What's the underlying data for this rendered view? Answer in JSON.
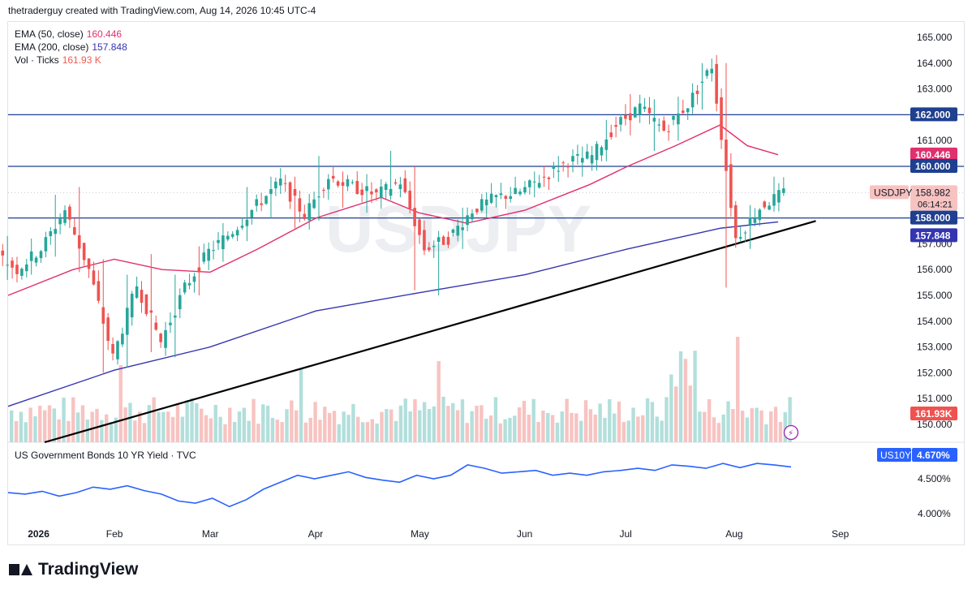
{
  "header": {
    "text": "thetraderguy created with TradingView.com, Aug 14, 2026 10:45 UTC-4"
  },
  "brand": {
    "name": "TradingView"
  },
  "watermark": "USDJPY",
  "legend": {
    "ema50": {
      "label": "EMA (50, close)",
      "value": "160.446",
      "color": "#e0306e"
    },
    "ema200": {
      "label": "EMA (200, close)",
      "value": "157.848",
      "color": "#3535b0"
    },
    "vol": {
      "label": "Vol · Ticks",
      "value": "161.93 K",
      "color": "#f25850"
    }
  },
  "lower_pane": {
    "label": "US Government Bonds 10 YR Yield · TVC"
  },
  "price_tags": {
    "symbol": "USDJPY",
    "last": "158.982",
    "countdown": "06:14:21",
    "ema50": "160.446",
    "ema200": "157.848",
    "level_162": "162.000",
    "level_160": "160.000",
    "level_158": "158.000",
    "volume": "161.93K",
    "us10y_symbol": "US10Y",
    "us10y_value": "4.670%"
  },
  "colors": {
    "up": "#26a69a",
    "down": "#ef5350",
    "vol_up": "#b2dfdb",
    "vol_down": "#f7c3c1",
    "ema50": "#e0306e",
    "ema200": "#3535b0",
    "hline": "#1f3f8f",
    "yield": "#2962ff"
  },
  "chart_data": [
    {
      "type": "candlestick",
      "title": "USDJPY",
      "y_ticks": [
        "165.000",
        "164.000",
        "163.000",
        "162.000",
        "161.000",
        "160.000",
        "159.000",
        "158.000",
        "157.000",
        "156.000",
        "155.000",
        "154.000",
        "153.000",
        "152.000",
        "151.000",
        "150.000"
      ],
      "ylim": [
        150,
        165
      ],
      "x_ticks": [
        "2026",
        "Feb",
        "Mar",
        "Apr",
        "May",
        "Jun",
        "Jul",
        "Aug",
        "Sep"
      ],
      "horizontal_levels": [
        162.0,
        160.0,
        158.0
      ],
      "trendline": {
        "from": [
          "2026-01-01",
          150.0
        ],
        "to": [
          "2026-08-25",
          157.9
        ]
      },
      "ohlc_weekly_approx": [
        {
          "date": "Jan 02",
          "o": 156.7,
          "h": 157.3,
          "l": 155.6,
          "c": 156.0
        },
        {
          "date": "Jan 09",
          "o": 156.0,
          "h": 157.2,
          "l": 155.8,
          "c": 156.8
        },
        {
          "date": "Jan 16",
          "o": 156.8,
          "h": 158.9,
          "l": 156.5,
          "c": 158.3
        },
        {
          "date": "Jan 23",
          "o": 158.3,
          "h": 159.2,
          "l": 155.9,
          "c": 156.0
        },
        {
          "date": "Jan 30",
          "o": 156.0,
          "h": 156.4,
          "l": 152.0,
          "c": 152.6
        },
        {
          "date": "Feb 06",
          "o": 152.6,
          "h": 155.8,
          "l": 152.2,
          "c": 155.4
        },
        {
          "date": "Feb 13",
          "o": 155.4,
          "h": 156.6,
          "l": 152.8,
          "c": 153.2
        },
        {
          "date": "Feb 20",
          "o": 153.2,
          "h": 155.8,
          "l": 152.6,
          "c": 155.3
        },
        {
          "date": "Feb 27",
          "o": 155.3,
          "h": 156.9,
          "l": 155.0,
          "c": 156.7
        },
        {
          "date": "Mar 06",
          "o": 156.7,
          "h": 157.8,
          "l": 156.3,
          "c": 157.5
        },
        {
          "date": "Mar 13",
          "o": 157.5,
          "h": 159.2,
          "l": 157.1,
          "c": 158.5
        },
        {
          "date": "Mar 20",
          "o": 158.5,
          "h": 159.6,
          "l": 158.0,
          "c": 159.4
        },
        {
          "date": "Mar 27",
          "o": 159.4,
          "h": 159.6,
          "l": 157.6,
          "c": 158.1
        },
        {
          "date": "Apr 03",
          "o": 158.1,
          "h": 160.4,
          "l": 157.9,
          "c": 159.6
        },
        {
          "date": "Apr 10",
          "o": 159.6,
          "h": 159.8,
          "l": 158.4,
          "c": 159.2
        },
        {
          "date": "Apr 17",
          "o": 159.2,
          "h": 159.7,
          "l": 158.2,
          "c": 158.9
        },
        {
          "date": "Apr 24",
          "o": 158.9,
          "h": 160.6,
          "l": 158.7,
          "c": 159.4
        },
        {
          "date": "May 01",
          "o": 159.4,
          "h": 160.0,
          "l": 155.2,
          "c": 156.8
        },
        {
          "date": "May 08",
          "o": 156.8,
          "h": 157.5,
          "l": 155.0,
          "c": 157.2
        },
        {
          "date": "May 15",
          "o": 157.2,
          "h": 158.4,
          "l": 156.8,
          "c": 158.3
        },
        {
          "date": "May 22",
          "o": 158.3,
          "h": 159.0,
          "l": 158.0,
          "c": 158.8
        },
        {
          "date": "May 29",
          "o": 158.8,
          "h": 159.2,
          "l": 158.6,
          "c": 159.0
        },
        {
          "date": "Jun 05",
          "o": 159.0,
          "h": 159.8,
          "l": 158.8,
          "c": 159.6
        },
        {
          "date": "Jun 12",
          "o": 159.6,
          "h": 160.4,
          "l": 159.4,
          "c": 160.2
        },
        {
          "date": "Jun 19",
          "o": 160.2,
          "h": 160.6,
          "l": 159.6,
          "c": 160.4
        },
        {
          "date": "Jun 26",
          "o": 160.4,
          "h": 161.8,
          "l": 160.2,
          "c": 161.6
        },
        {
          "date": "Jul 03",
          "o": 161.6,
          "h": 162.8,
          "l": 161.2,
          "c": 162.3
        },
        {
          "date": "Jul 10",
          "o": 162.3,
          "h": 162.6,
          "l": 160.6,
          "c": 161.4
        },
        {
          "date": "Jul 17",
          "o": 161.4,
          "h": 162.7,
          "l": 161.0,
          "c": 162.4
        },
        {
          "date": "Jul 24",
          "o": 162.4,
          "h": 164.0,
          "l": 162.2,
          "c": 163.9
        },
        {
          "date": "Jul 31",
          "o": 163.9,
          "h": 164.0,
          "l": 155.3,
          "c": 157.2
        },
        {
          "date": "Aug 07",
          "o": 157.2,
          "h": 158.5,
          "l": 156.8,
          "c": 158.4
        },
        {
          "date": "Aug 14",
          "o": 158.4,
          "h": 159.6,
          "l": 158.3,
          "c": 158.98
        }
      ],
      "ema50_approx": [
        {
          "date": "Jan 01",
          "v": 155.0
        },
        {
          "date": "Jan 20",
          "v": 156.0
        },
        {
          "date": "Feb 01",
          "v": 156.4
        },
        {
          "date": "Feb 15",
          "v": 156.0
        },
        {
          "date": "Mar 01",
          "v": 155.9
        },
        {
          "date": "Mar 15",
          "v": 156.8
        },
        {
          "date": "Apr 01",
          "v": 158.0
        },
        {
          "date": "Apr 20",
          "v": 158.8
        },
        {
          "date": "May 01",
          "v": 158.2
        },
        {
          "date": "May 15",
          "v": 157.8
        },
        {
          "date": "Jun 01",
          "v": 158.3
        },
        {
          "date": "Jun 20",
          "v": 159.3
        },
        {
          "date": "Jul 01",
          "v": 160.0
        },
        {
          "date": "Jul 15",
          "v": 160.8
        },
        {
          "date": "Jul 28",
          "v": 161.6
        },
        {
          "date": "Aug 05",
          "v": 160.8
        },
        {
          "date": "Aug 14",
          "v": 160.45
        }
      ],
      "ema200_approx": [
        {
          "date": "Jan 01",
          "v": 150.7
        },
        {
          "date": "Feb 01",
          "v": 152.1
        },
        {
          "date": "Mar 01",
          "v": 153.0
        },
        {
          "date": "Apr 01",
          "v": 154.4
        },
        {
          "date": "May 01",
          "v": 155.1
        },
        {
          "date": "Jun 01",
          "v": 155.8
        },
        {
          "date": "Jul 01",
          "v": 156.8
        },
        {
          "date": "Jul 28",
          "v": 157.6
        },
        {
          "date": "Aug 14",
          "v": 157.85
        }
      ]
    },
    {
      "type": "line",
      "title": "US Government Bonds 10 YR Yield · TVC",
      "y_ticks": [
        "4.500%",
        "4.000%"
      ],
      "ylim": [
        3.8,
        4.85
      ],
      "series": [
        {
          "values": [
            4.3,
            4.28,
            4.32,
            4.25,
            4.3,
            4.38,
            4.35,
            4.4,
            4.33,
            4.28,
            4.18,
            4.15,
            4.22,
            4.1,
            4.2,
            4.35,
            4.45,
            4.55,
            4.5,
            4.55,
            4.6,
            4.52,
            4.48,
            4.45,
            4.55,
            4.5,
            4.55,
            4.7,
            4.65,
            4.58,
            4.6,
            4.62,
            4.55,
            4.58,
            4.55,
            4.6,
            4.62,
            4.65,
            4.62,
            4.7,
            4.68,
            4.65,
            4.72,
            4.66,
            4.72,
            4.7,
            4.67
          ]
        }
      ]
    }
  ]
}
